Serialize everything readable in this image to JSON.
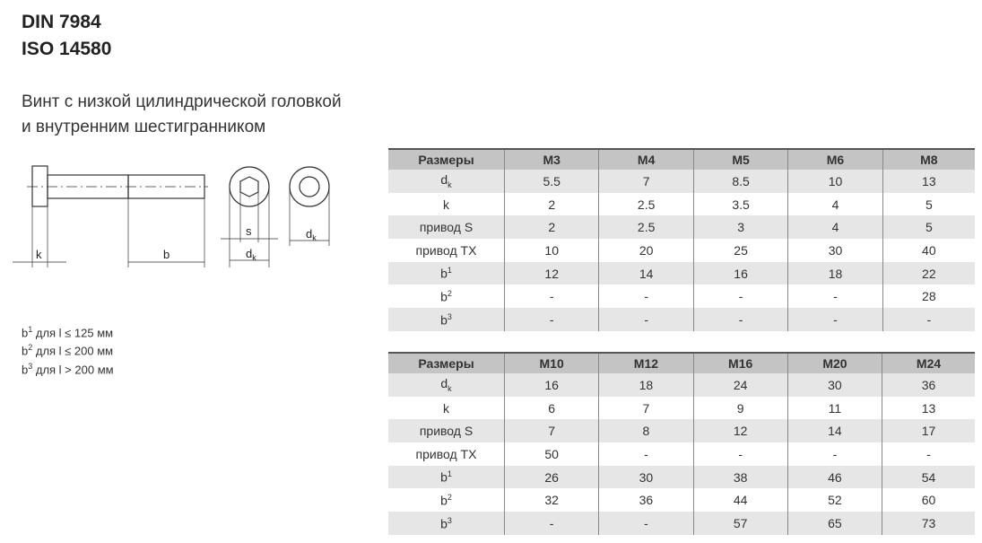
{
  "title": [
    "DIN 7984",
    "ISO 14580"
  ],
  "description": [
    "Винт с низкой цилиндрической головкой",
    "и внутренним шестигранником"
  ],
  "drawing_labels": {
    "k": "k",
    "b": "b",
    "s": "s",
    "dk_base": "d",
    "dk_sub": "k"
  },
  "notes": [
    {
      "base": "b",
      "sup": "1",
      "text": " для l ≤ 125 мм"
    },
    {
      "base": "b",
      "sup": "2",
      "text": " для l ≤ 200 мм"
    },
    {
      "base": "b",
      "sup": "3",
      "text": " для l > 200 мм"
    }
  ],
  "row_labels": [
    {
      "base": "d",
      "sub": "k"
    },
    {
      "base": "k"
    },
    {
      "base": "привод S"
    },
    {
      "base": "привод TX"
    },
    {
      "base": "b",
      "sup": "1"
    },
    {
      "base": "b",
      "sup": "2"
    },
    {
      "base": "b",
      "sup": "3"
    }
  ],
  "tables": [
    {
      "header": [
        "Размеры",
        "M3",
        "M4",
        "M5",
        "M6",
        "M8"
      ],
      "rows": [
        [
          "5.5",
          "7",
          "8.5",
          "10",
          "13"
        ],
        [
          "2",
          "2.5",
          "3.5",
          "4",
          "5"
        ],
        [
          "2",
          "2.5",
          "3",
          "4",
          "5"
        ],
        [
          "10",
          "20",
          "25",
          "30",
          "40"
        ],
        [
          "12",
          "14",
          "16",
          "18",
          "22"
        ],
        [
          "-",
          "-",
          "-",
          "-",
          "28"
        ],
        [
          "-",
          "-",
          "-",
          "-",
          "-"
        ]
      ]
    },
    {
      "header": [
        "Размеры",
        "M10",
        "M12",
        "M16",
        "M20",
        "M24"
      ],
      "rows": [
        [
          "16",
          "18",
          "24",
          "30",
          "36"
        ],
        [
          "6",
          "7",
          "9",
          "11",
          "13"
        ],
        [
          "7",
          "8",
          "12",
          "14",
          "17"
        ],
        [
          "50",
          "-",
          "-",
          "-",
          "-"
        ],
        [
          "26",
          "30",
          "38",
          "46",
          "54"
        ],
        [
          "32",
          "36",
          "44",
          "52",
          "60"
        ],
        [
          "-",
          "-",
          "57",
          "65",
          "73"
        ]
      ]
    }
  ]
}
